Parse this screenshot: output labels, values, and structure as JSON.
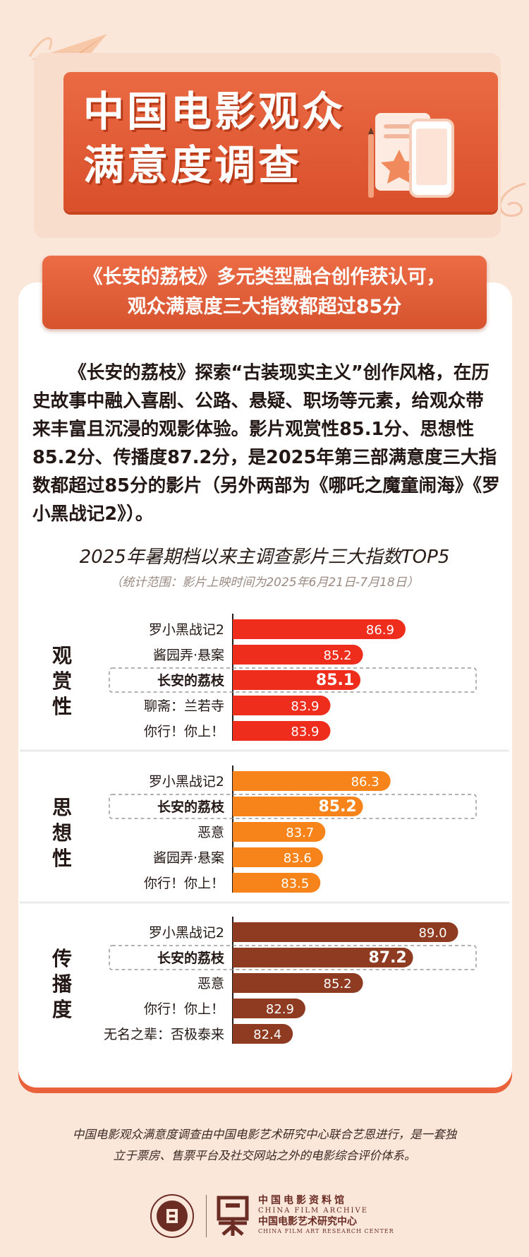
{
  "header": {
    "title_line1": "中国电影观众",
    "title_line2": "满意度调查"
  },
  "banner": {
    "line1": "《长安的荔枝》多元类型融合创作获认可，",
    "line2": "观众满意度三大指数都超过85分"
  },
  "intro": "《长安的荔枝》探索“古装现实主义”创作风格，在历史故事中融入喜剧、公路、悬疑、职场等元素，给观众带来丰富且沉浸的观影体验。影片观赏性85.1分、思想性85.2分、传播度87.2分，是2025年第三部满意度三大指数都超过85分的影片（另外两部为《哪吒之魔童闹海》《罗小黑战记2》）。",
  "chart_data": {
    "type": "bar",
    "title": "2025年暑期档以来主调查影片三大指数TOP5",
    "subtitle": "（统计范围：影片上映时间为2025年6月21日-7月18日）",
    "highlight": "长安的荔枝",
    "groups": [
      {
        "name": "观赏性",
        "color": "#ef2d1d",
        "categories": [
          "罗小黑战记2",
          "酱园弄·悬案",
          "长安的荔枝",
          "聊斋：兰若寺",
          "你行！你上！"
        ],
        "values": [
          86.9,
          85.2,
          85.1,
          83.9,
          83.9
        ]
      },
      {
        "name": "思想性",
        "color": "#f7841a",
        "categories": [
          "罗小黑战记2",
          "长安的荔枝",
          "恶意",
          "酱园弄·悬案",
          "你行！你上！"
        ],
        "values": [
          86.3,
          85.2,
          83.7,
          83.6,
          83.5
        ]
      },
      {
        "name": "传播度",
        "color": "#8e3b22",
        "categories": [
          "罗小黑战记2",
          "长安的荔枝",
          "恶意",
          "你行！你上！",
          "无名之辈：否极泰来"
        ],
        "values": [
          89.0,
          87.2,
          85.2,
          82.9,
          82.4
        ]
      }
    ]
  },
  "footer": {
    "line1": "中国电影观众满意度调查由中国电影艺术研究中心联合艺恩进行，是一套独",
    "line2": "立于票房、售票平台及社交网站之外的电影综合评价体系。"
  },
  "logos": {
    "cn_archive": "中国电影资料馆",
    "en_archive": "CHINA FILM ARCHIVE",
    "cn_center": "中国电影艺术研究中心",
    "en_center": "CHINA FILM ART RESEARCH CENTER"
  }
}
